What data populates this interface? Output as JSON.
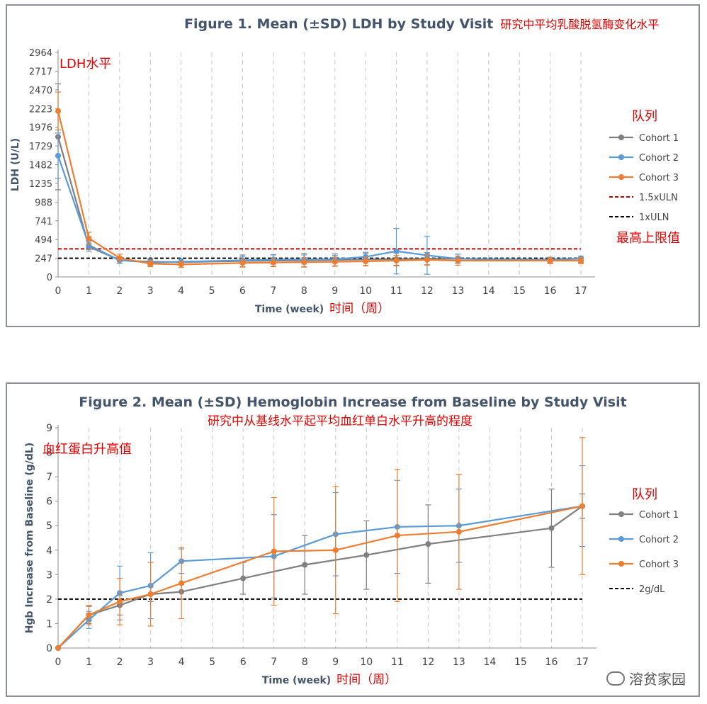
{
  "chart_data": [
    {
      "type": "line",
      "title": "Figure 1. Mean (±SD) LDH by Study Visit",
      "title_cn": "研究中平均乳酸脱氢酶变化水平",
      "ylabel": "LDH (U/L)",
      "ylabel_cn": "LDH水平",
      "xlabel": "Time (week)",
      "xlabel_cn": "时间（周）",
      "legend_title_cn": "队列",
      "ref_note_cn": "最高上限值",
      "ylim": [
        0,
        2964
      ],
      "yticks": [
        0,
        247,
        494,
        741,
        988,
        1235,
        1482,
        1729,
        1976,
        2223,
        2470,
        2717,
        2964
      ],
      "xlim": [
        0,
        17
      ],
      "xticks": [
        0,
        1,
        2,
        3,
        4,
        5,
        6,
        7,
        8,
        9,
        10,
        11,
        12,
        13,
        14,
        15,
        16,
        17
      ],
      "grid": "vertical dashed",
      "legend_position": "right",
      "series": [
        {
          "name": "Cohort 1",
          "color": "#7f7f7f",
          "x": [
            0,
            1,
            2,
            3,
            4,
            6,
            7,
            8,
            9,
            10,
            11,
            12,
            13,
            16,
            17
          ],
          "y": [
            1850,
            400,
            220,
            200,
            195,
            210,
            215,
            220,
            225,
            230,
            235,
            240,
            240,
            215,
            220
          ],
          "sd": [
            700,
            60,
            40,
            40,
            40,
            80,
            80,
            90,
            80,
            80,
            80,
            80,
            60,
            30,
            30
          ]
        },
        {
          "name": "Cohort 2",
          "color": "#5b9bd5",
          "x": [
            0,
            1,
            2,
            3,
            4,
            6,
            7,
            8,
            9,
            10,
            11,
            12,
            13,
            16,
            17
          ],
          "y": [
            1600,
            420,
            220,
            190,
            200,
            220,
            230,
            230,
            235,
            265,
            340,
            285,
            240,
            230,
            245
          ],
          "sd": [
            300,
            60,
            40,
            40,
            40,
            50,
            60,
            60,
            50,
            60,
            300,
            250,
            60,
            30,
            30
          ]
        },
        {
          "name": "Cohort 3",
          "color": "#ed7d31",
          "x": [
            0,
            1,
            2,
            3,
            4,
            6,
            7,
            8,
            9,
            10,
            11,
            12,
            13,
            16,
            17
          ],
          "y": [
            2190,
            510,
            250,
            175,
            165,
            185,
            190,
            195,
            200,
            205,
            215,
            225,
            215,
            215,
            215
          ],
          "sd": [
            250,
            80,
            50,
            40,
            40,
            50,
            50,
            60,
            60,
            60,
            70,
            70,
            60,
            40,
            40
          ]
        }
      ],
      "reference_lines": [
        {
          "name": "1.5xULN",
          "y": 370,
          "color": "#c00000"
        },
        {
          "name": "1xULN",
          "y": 247,
          "color": "#000000"
        }
      ]
    },
    {
      "type": "line",
      "title": "Figure 2. Mean (±SD) Hemoglobin Increase from Baseline by Study Visit",
      "title_cn": "研究中从基线水平起平均血红单白水平升高的程度",
      "ylabel": "Hgb Increase from Baseline (g/dL)",
      "ylabel_cn": "血红蛋白升高值",
      "xlabel": "Time (week)",
      "xlabel_cn": "时间（周）",
      "legend_title_cn": "队列",
      "ylim": [
        0,
        9
      ],
      "yticks": [
        0,
        1,
        2,
        3,
        4,
        5,
        6,
        7,
        8,
        9
      ],
      "xlim": [
        0,
        17
      ],
      "xticks": [
        0,
        1,
        2,
        3,
        4,
        5,
        6,
        7,
        8,
        9,
        10,
        11,
        12,
        13,
        14,
        15,
        16,
        17
      ],
      "grid": "vertical dashed",
      "legend_position": "right",
      "series": [
        {
          "name": "Cohort 1",
          "color": "#7f7f7f",
          "x": [
            0,
            1,
            2,
            3,
            4,
            6,
            8,
            10,
            12,
            16,
            17
          ],
          "y": [
            0,
            1.35,
            1.75,
            2.2,
            2.3,
            2.85,
            3.4,
            3.8,
            4.25,
            4.9,
            5.8
          ],
          "sd": [
            0,
            0.35,
            0.4,
            0.3,
            0.3,
            0.65,
            1.2,
            1.4,
            1.6,
            1.6,
            0.5
          ]
        },
        {
          "name": "Cohort 2",
          "color": "#5b9bd5",
          "x": [
            0,
            1,
            2,
            3,
            4,
            7,
            9,
            11,
            13,
            17
          ],
          "y": [
            0,
            1.15,
            2.25,
            2.55,
            3.55,
            3.75,
            4.65,
            4.95,
            5.0,
            5.8
          ],
          "sd": [
            0,
            0.35,
            1.1,
            1.35,
            0.5,
            1.7,
            1.7,
            1.9,
            1.5,
            1.65
          ]
        },
        {
          "name": "Cohort 3",
          "color": "#ed7d31",
          "x": [
            0,
            1,
            2,
            3,
            4,
            7,
            9,
            11,
            13,
            17
          ],
          "y": [
            0,
            1.35,
            1.9,
            2.2,
            2.65,
            3.95,
            4.0,
            4.6,
            4.75,
            5.8
          ],
          "sd": [
            0,
            0.4,
            0.95,
            1.3,
            1.45,
            2.2,
            2.6,
            2.7,
            2.35,
            2.8
          ]
        }
      ],
      "reference_lines": [
        {
          "name": "2g/dL",
          "y": 2,
          "color": "#000000"
        }
      ]
    }
  ],
  "watermark": "溶贫家园"
}
